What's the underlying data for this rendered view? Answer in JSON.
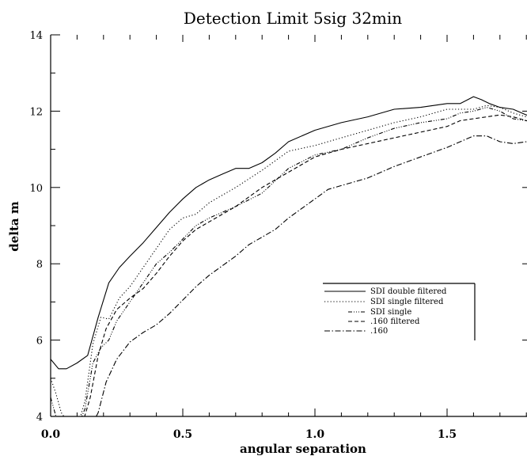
{
  "chart_data": {
    "type": "line",
    "title": "Detection Limit 5sig 32min",
    "xlabel": "angular separation",
    "ylabel": "delta m",
    "xlim": [
      0.0,
      1.9
    ],
    "ylim": [
      4,
      14
    ],
    "x_ticks": [
      {
        "value": 0.0,
        "label": "0.0"
      },
      {
        "value": 0.5,
        "label": "0.5"
      },
      {
        "value": 1.0,
        "label": "1.0"
      },
      {
        "value": 1.5,
        "label": "1.5"
      }
    ],
    "y_ticks": [
      {
        "value": 4,
        "label": "4"
      },
      {
        "value": 6,
        "label": "6"
      },
      {
        "value": 8,
        "label": "8"
      },
      {
        "value": 10,
        "label": "10"
      },
      {
        "value": 12,
        "label": "12"
      },
      {
        "value": 14,
        "label": "14"
      }
    ],
    "grid": false,
    "legend_position": "center-right",
    "series": [
      {
        "name": "SDI double filtered",
        "dash": "",
        "x": [
          0.0,
          0.03,
          0.06,
          0.1,
          0.14,
          0.18,
          0.22,
          0.26,
          0.3,
          0.35,
          0.4,
          0.45,
          0.5,
          0.55,
          0.6,
          0.65,
          0.7,
          0.75,
          0.8,
          0.85,
          0.9,
          1.0,
          1.1,
          1.2,
          1.3,
          1.4,
          1.5,
          1.55,
          1.6,
          1.63,
          1.66,
          1.7,
          1.75,
          1.8,
          1.85,
          1.9
        ],
        "y": [
          5.5,
          5.25,
          5.25,
          5.4,
          5.6,
          6.6,
          7.5,
          7.9,
          8.2,
          8.55,
          8.95,
          9.35,
          9.7,
          10.0,
          10.2,
          10.35,
          10.5,
          10.5,
          10.65,
          10.9,
          11.2,
          11.5,
          11.7,
          11.85,
          12.05,
          12.1,
          12.2,
          12.2,
          12.38,
          12.3,
          12.2,
          12.1,
          12.05,
          11.9,
          11.85,
          11.95
        ]
      },
      {
        "name": "SDI single filtered",
        "dash": "1.2 2.6",
        "x": [
          0.0,
          0.02,
          0.04,
          0.07,
          0.1,
          0.13,
          0.16,
          0.19,
          0.22,
          0.26,
          0.3,
          0.35,
          0.4,
          0.45,
          0.5,
          0.55,
          0.6,
          0.7,
          0.8,
          0.9,
          1.0,
          1.1,
          1.2,
          1.3,
          1.4,
          1.5,
          1.55,
          1.6,
          1.65,
          1.7,
          1.75,
          1.8,
          1.85,
          1.9
        ],
        "y": [
          5.0,
          4.6,
          4.1,
          3.8,
          3.7,
          4.4,
          5.9,
          6.6,
          6.55,
          7.1,
          7.4,
          7.9,
          8.4,
          8.9,
          9.2,
          9.3,
          9.6,
          10.0,
          10.45,
          10.95,
          11.1,
          11.3,
          11.5,
          11.7,
          11.85,
          12.05,
          12.05,
          12.05,
          12.15,
          12.1,
          11.95,
          11.85,
          11.9,
          11.8
        ]
      },
      {
        "name": "SDI single",
        "dash": "5 2 1 2 1 2 1 2",
        "x": [
          0.0,
          0.02,
          0.04,
          0.07,
          0.1,
          0.13,
          0.16,
          0.19,
          0.22,
          0.25,
          0.3,
          0.35,
          0.4,
          0.45,
          0.5,
          0.55,
          0.6,
          0.7,
          0.8,
          0.9,
          1.0,
          1.1,
          1.2,
          1.3,
          1.4,
          1.5,
          1.55,
          1.6,
          1.65,
          1.7,
          1.75,
          1.8,
          1.85,
          1.9
        ],
        "y": [
          4.5,
          4.0,
          3.8,
          3.7,
          3.7,
          4.2,
          5.4,
          5.8,
          6.0,
          6.5,
          7.0,
          7.5,
          8.0,
          8.3,
          8.65,
          9.0,
          9.2,
          9.5,
          9.85,
          10.5,
          10.85,
          11.0,
          11.3,
          11.55,
          11.7,
          11.8,
          11.95,
          12.0,
          12.1,
          12.0,
          11.8,
          11.75,
          11.7,
          11.85
        ]
      },
      {
        "name": ".160 filtered",
        "dash": "5 3",
        "x": [
          0.0,
          0.04,
          0.08,
          0.12,
          0.15,
          0.18,
          0.21,
          0.25,
          0.3,
          0.35,
          0.4,
          0.45,
          0.5,
          0.55,
          0.6,
          0.7,
          0.8,
          0.9,
          1.0,
          1.1,
          1.2,
          1.3,
          1.4,
          1.5,
          1.55,
          1.6,
          1.65,
          1.7,
          1.75,
          1.8,
          1.85,
          1.9
        ],
        "y": [
          4.0,
          3.7,
          3.7,
          3.8,
          4.5,
          5.6,
          6.3,
          6.8,
          7.1,
          7.35,
          7.75,
          8.2,
          8.6,
          8.9,
          9.1,
          9.5,
          10.0,
          10.4,
          10.8,
          11.0,
          11.15,
          11.3,
          11.45,
          11.6,
          11.75,
          11.8,
          11.85,
          11.9,
          11.85,
          11.75,
          11.7,
          11.7
        ]
      },
      {
        "name": ".160",
        "dash": "7 2.5 1.5 2.5",
        "x": [
          0.0,
          0.05,
          0.1,
          0.15,
          0.18,
          0.21,
          0.25,
          0.3,
          0.35,
          0.4,
          0.45,
          0.5,
          0.55,
          0.6,
          0.65,
          0.7,
          0.75,
          0.8,
          0.85,
          0.9,
          1.0,
          1.05,
          1.1,
          1.2,
          1.3,
          1.4,
          1.5,
          1.55,
          1.6,
          1.65,
          1.7,
          1.75,
          1.8,
          1.85,
          1.9
        ],
        "y": [
          3.6,
          3.6,
          3.6,
          3.7,
          4.1,
          4.9,
          5.5,
          5.95,
          6.2,
          6.4,
          6.7,
          7.05,
          7.4,
          7.7,
          7.95,
          8.2,
          8.5,
          8.7,
          8.9,
          9.2,
          9.7,
          9.95,
          10.05,
          10.25,
          10.55,
          10.8,
          11.05,
          11.2,
          11.35,
          11.35,
          11.2,
          11.15,
          11.2,
          11.35,
          11.45
        ]
      }
    ]
  }
}
